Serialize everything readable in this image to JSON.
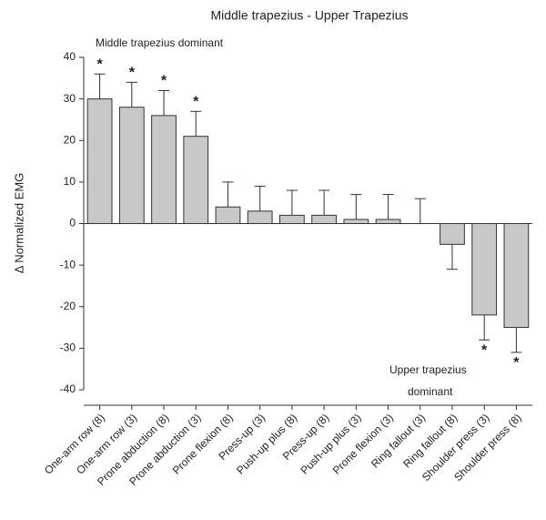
{
  "chart_data": {
    "type": "bar",
    "title": "Middle trapezius - Upper Trapezius",
    "y_label": "Δ Normalized EMG",
    "categories": [
      "One-arm row (8)",
      "One-arm row (3)",
      "Prone abduction (8)",
      "Prone abduction (3)",
      "Prone flexion (8)",
      "Press-up (3)",
      "Push-up plus (8)",
      "Press-up (8)",
      "Push-up plus (3)",
      "Prone flexion (3)",
      "Ring fallout (3)",
      "Ring fallout (8)",
      "Shoulder press (3)",
      "Shoulder press (8)"
    ],
    "values": [
      30,
      28,
      26,
      21,
      4,
      3,
      2,
      2,
      1,
      1,
      0,
      -5,
      -22,
      -25
    ],
    "errors": [
      6,
      6,
      6,
      6,
      6,
      6,
      6,
      6,
      6,
      6,
      6,
      6,
      6,
      6
    ],
    "significance": [
      "*",
      "*",
      "*",
      "*",
      null,
      null,
      null,
      null,
      null,
      null,
      null,
      null,
      "*",
      "*"
    ],
    "color": "#c8c8c8",
    "ylim": [
      -40,
      40
    ],
    "yticks": [
      -40,
      -30,
      -20,
      -10,
      0,
      10,
      20,
      30,
      40
    ],
    "annotations": [
      {
        "lines": [
          "Middle trapezius dominant"
        ]
      },
      {
        "lines": [
          "Upper trapezius",
          "dominant"
        ]
      }
    ]
  }
}
